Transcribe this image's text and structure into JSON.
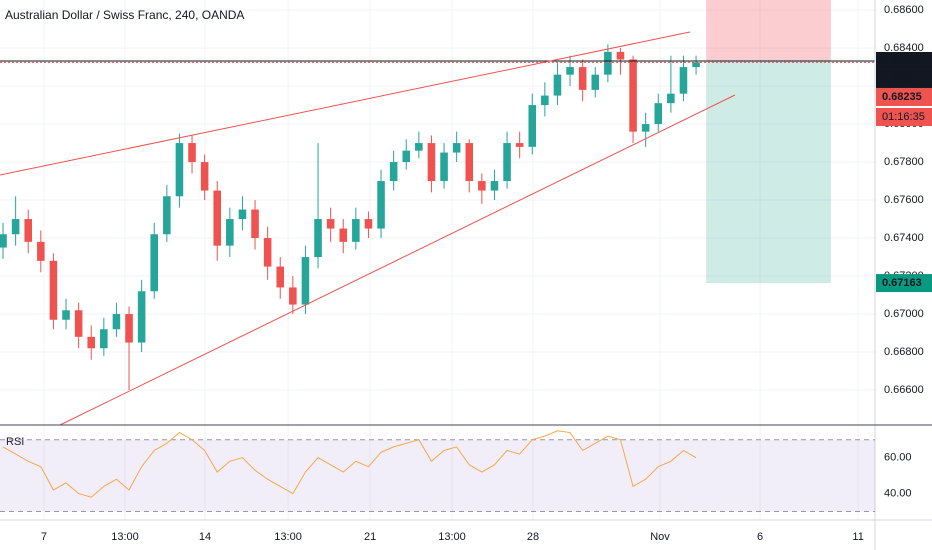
{
  "chart_data": {
    "type": "candlestick",
    "title": "Australian Dollar / Swiss Franc, 240, OANDA",
    "up_color": "#26a69a",
    "down_color": "#ef5350",
    "ohlc": [
      [
        0.6735,
        0.6748,
        0.6729,
        0.6742
      ],
      [
        0.6742,
        0.6762,
        0.6736,
        0.675
      ],
      [
        0.675,
        0.6755,
        0.6732,
        0.6738
      ],
      [
        0.6738,
        0.6744,
        0.6722,
        0.6728
      ],
      [
        0.6728,
        0.6732,
        0.6692,
        0.6697
      ],
      [
        0.6697,
        0.6708,
        0.6692,
        0.6702
      ],
      [
        0.6702,
        0.6706,
        0.6682,
        0.6688
      ],
      [
        0.6688,
        0.6694,
        0.6676,
        0.6682
      ],
      [
        0.6682,
        0.6698,
        0.6678,
        0.6692
      ],
      [
        0.6692,
        0.6706,
        0.6688,
        0.67
      ],
      [
        0.67,
        0.6704,
        0.666,
        0.6685
      ],
      [
        0.6685,
        0.6718,
        0.668,
        0.6712
      ],
      [
        0.6712,
        0.6748,
        0.6708,
        0.6742
      ],
      [
        0.6742,
        0.6768,
        0.6738,
        0.6762
      ],
      [
        0.6762,
        0.6795,
        0.6756,
        0.679
      ],
      [
        0.679,
        0.6794,
        0.6774,
        0.678
      ],
      [
        0.678,
        0.6784,
        0.676,
        0.6765
      ],
      [
        0.6765,
        0.677,
        0.6728,
        0.6736
      ],
      [
        0.6736,
        0.6756,
        0.673,
        0.675
      ],
      [
        0.675,
        0.6762,
        0.6744,
        0.6755
      ],
      [
        0.6755,
        0.676,
        0.6734,
        0.674
      ],
      [
        0.674,
        0.6746,
        0.6718,
        0.6725
      ],
      [
        0.6725,
        0.673,
        0.6708,
        0.6714
      ],
      [
        0.6714,
        0.672,
        0.67,
        0.6705
      ],
      [
        0.6705,
        0.6736,
        0.67,
        0.673
      ],
      [
        0.673,
        0.679,
        0.6724,
        0.675
      ],
      [
        0.675,
        0.6756,
        0.6738,
        0.6745
      ],
      [
        0.6745,
        0.675,
        0.6732,
        0.6738
      ],
      [
        0.6738,
        0.6756,
        0.6734,
        0.675
      ],
      [
        0.675,
        0.6754,
        0.674,
        0.6745
      ],
      [
        0.6745,
        0.6776,
        0.674,
        0.677
      ],
      [
        0.677,
        0.6786,
        0.6765,
        0.678
      ],
      [
        0.678,
        0.6792,
        0.6776,
        0.6786
      ],
      [
        0.6786,
        0.6796,
        0.6782,
        0.679
      ],
      [
        0.679,
        0.6794,
        0.6764,
        0.677
      ],
      [
        0.677,
        0.679,
        0.6766,
        0.6785
      ],
      [
        0.6785,
        0.6796,
        0.678,
        0.679
      ],
      [
        0.679,
        0.6792,
        0.6764,
        0.677
      ],
      [
        0.677,
        0.6774,
        0.6758,
        0.6765
      ],
      [
        0.6765,
        0.6776,
        0.676,
        0.677
      ],
      [
        0.677,
        0.6796,
        0.6766,
        0.679
      ],
      [
        0.679,
        0.6796,
        0.6782,
        0.6788
      ],
      [
        0.6788,
        0.6816,
        0.6784,
        0.681
      ],
      [
        0.681,
        0.6822,
        0.6804,
        0.6815
      ],
      [
        0.6815,
        0.6832,
        0.681,
        0.6826
      ],
      [
        0.6826,
        0.6836,
        0.682,
        0.683
      ],
      [
        0.683,
        0.6834,
        0.6812,
        0.6818
      ],
      [
        0.6818,
        0.683,
        0.6814,
        0.6826
      ],
      [
        0.6826,
        0.6842,
        0.6822,
        0.6838
      ],
      [
        0.6838,
        0.684,
        0.6826,
        0.6834
      ],
      [
        0.6834,
        0.6836,
        0.679,
        0.6796
      ],
      [
        0.6796,
        0.6806,
        0.6788,
        0.68
      ],
      [
        0.68,
        0.6816,
        0.6796,
        0.6811
      ],
      [
        0.6811,
        0.6836,
        0.6806,
        0.6816
      ],
      [
        0.6816,
        0.6836,
        0.6812,
        0.683
      ],
      [
        0.683,
        0.6836,
        0.6826,
        0.68325
      ]
    ],
    "xlim": [
      -0.24,
      69.2
    ],
    "xticks": [
      {
        "value": 3.25,
        "label": "7"
      },
      {
        "value": 9.68,
        "label": "13:00"
      },
      {
        "value": 16.03,
        "label": "14"
      },
      {
        "value": 22.62,
        "label": "13:00"
      },
      {
        "value": 29.13,
        "label": "21"
      },
      {
        "value": 35.63,
        "label": "13:00"
      },
      {
        "value": 42.06,
        "label": "28"
      },
      {
        "value": 52.14,
        "label": "Nov"
      },
      {
        "value": 60.08,
        "label": "6"
      },
      {
        "value": 67.86,
        "label": "11"
      }
    ],
    "ylim": [
      0.66416,
      0.68653
    ],
    "yticks": [
      {
        "value": 0.686,
        "label": "0.68600"
      },
      {
        "value": 0.684,
        "label": "0.68400"
      },
      {
        "value": 0.682,
        "label": "0.68200"
      },
      {
        "value": 0.68,
        "label": "0.68000"
      },
      {
        "value": 0.678,
        "label": "0.67800"
      },
      {
        "value": 0.676,
        "label": "0.67600"
      },
      {
        "value": 0.674,
        "label": "0.67400"
      },
      {
        "value": 0.672,
        "label": "0.67200"
      },
      {
        "value": 0.67,
        "label": "0.67000"
      },
      {
        "value": 0.668,
        "label": "0.66800"
      },
      {
        "value": 0.666,
        "label": "0.66600"
      }
    ],
    "grid": true,
    "position": {
      "start": 55.8,
      "end": 65.7,
      "stop": 0.68653,
      "entry": 0.68332,
      "target": 0.67163
    },
    "price_markers": [
      {
        "value": 0.68332,
        "color": "#131722"
      },
      {
        "value": 0.68325,
        "color": "#131722"
      },
      {
        "value": 0.68235,
        "color": "#ef5350"
      },
      {
        "value": 0.67163,
        "color": "#089981"
      }
    ],
    "countdown": "01:16:35",
    "rsi": {
      "name": "RSI",
      "color": "#f7a64a",
      "values": [
        66,
        62,
        58,
        55,
        42,
        46,
        40,
        38,
        44,
        48,
        42,
        55,
        64,
        68,
        74,
        70,
        64,
        52,
        58,
        60,
        53,
        48,
        44,
        40,
        52,
        60,
        56,
        52,
        58,
        55,
        63,
        66,
        68,
        70,
        58,
        64,
        66,
        56,
        52,
        56,
        64,
        62,
        70,
        72,
        75,
        74,
        64,
        68,
        72,
        70,
        44,
        48,
        55,
        58,
        64,
        60
      ],
      "ylim": [
        25.3,
        78.2
      ],
      "yticks": [
        {
          "value": 60,
          "label": "60.00"
        },
        {
          "value": 40,
          "label": "40.00"
        }
      ],
      "bands": [
        70,
        30
      ]
    }
  }
}
